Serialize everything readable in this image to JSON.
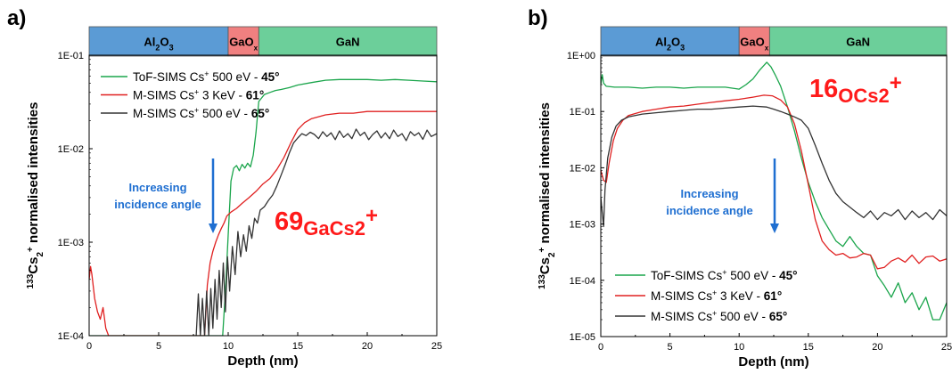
{
  "colors": {
    "tof": "#1aa54b",
    "msims3k": "#e02020",
    "msims500": "#333333",
    "al2o3": "#5b9bd5",
    "gaox": "#f08080",
    "gan": "#6ccf9a",
    "arrow": "#1f6fd1",
    "species": "#ff1a1a"
  },
  "chart_data": [
    {
      "type": "line",
      "panel_label": "a)",
      "xlabel": "Depth (nm)",
      "ylabel_text": "Cs",
      "ylabel_super_pre": "133",
      "ylabel_sub": "2",
      "ylabel_super": "+",
      "ylabel_rest": " normalised intensities",
      "y_scale": "log",
      "xlim": [
        0,
        25
      ],
      "ylim": [
        0.0001,
        0.1
      ],
      "x_ticks": [
        "0",
        "5",
        "10",
        "15",
        "20",
        "25"
      ],
      "y_ticks": [
        "1E-04",
        "1E-03",
        "1E-02",
        "1E-01"
      ],
      "layers": [
        {
          "label": "Al",
          "sub": "2",
          "label2": "O",
          "sub2": "3",
          "from": 0,
          "to": 10
        },
        {
          "label": "GaO",
          "sub": "x",
          "label2": "",
          "sub2": "",
          "from": 10,
          "to": 12.2
        },
        {
          "label": "GaN",
          "sub": "",
          "label2": "",
          "sub2": "",
          "from": 12.2,
          "to": 25
        }
      ],
      "species_label": "69GaCs2+",
      "annotation": [
        "Increasing",
        "incidence angle"
      ],
      "legend_position": "top-left",
      "series": [
        {
          "key": "tof",
          "name_parts": [
            "ToF-SIMS Cs",
            "+",
            " 500 eV - ",
            "45°"
          ],
          "x": [
            0,
            0.2,
            9.6,
            9.8,
            10.0,
            10.2,
            10.4,
            10.6,
            10.8,
            11.0,
            11.2,
            11.4,
            11.6,
            11.8,
            12.0,
            12.2,
            12.6,
            13.0,
            13.4,
            13.8,
            14.4,
            15.0,
            16.0,
            17.0,
            18.0,
            19.0,
            20.0,
            21.0,
            22.0,
            23.0,
            24.0,
            25.0
          ],
          "y": [
            0.0001,
            0.0001,
            0.0001,
            0.0003,
            0.0012,
            0.0045,
            0.0062,
            0.0066,
            0.0058,
            0.0068,
            0.0062,
            0.007,
            0.0064,
            0.0085,
            0.015,
            0.032,
            0.038,
            0.04,
            0.042,
            0.043,
            0.045,
            0.048,
            0.051,
            0.054,
            0.055,
            0.055,
            0.055,
            0.054,
            0.055,
            0.054,
            0.053,
            0.052
          ]
        },
        {
          "key": "msims3k",
          "name_parts": [
            "M-SIMS Cs",
            "+",
            " 3 KeV - ",
            "61°"
          ],
          "x": [
            0,
            0.1,
            0.2,
            0.4,
            0.6,
            0.8,
            1.0,
            1.2,
            1.4,
            8.3,
            8.5,
            8.7,
            8.9,
            9.1,
            9.3,
            9.5,
            9.7,
            9.9,
            10.2,
            10.6,
            11.0,
            11.5,
            12.0,
            12.5,
            13.0,
            13.5,
            14.0,
            14.5,
            15.0,
            15.5,
            16.0,
            17.0,
            18.0,
            19.0,
            20.0,
            21.0,
            22.0,
            23.0,
            24.0,
            25.0
          ],
          "y": [
            0.0004,
            0.00055,
            0.00045,
            0.00025,
            0.00018,
            0.00015,
            0.0002,
            0.00012,
            0.0001,
            0.0001,
            0.00035,
            0.0006,
            0.0008,
            0.001,
            0.0012,
            0.0014,
            0.0016,
            0.0019,
            0.0021,
            0.0023,
            0.0026,
            0.003,
            0.0035,
            0.0042,
            0.0048,
            0.006,
            0.008,
            0.0115,
            0.016,
            0.019,
            0.021,
            0.023,
            0.024,
            0.024,
            0.025,
            0.025,
            0.025,
            0.025,
            0.025,
            0.025
          ]
        },
        {
          "key": "msims500",
          "name_parts": [
            "M-SIMS Cs",
            "+",
            " 500 eV - ",
            "65°"
          ],
          "x": [
            7.7,
            7.85,
            8.0,
            8.15,
            8.3,
            8.45,
            8.6,
            8.75,
            8.9,
            9.05,
            9.2,
            9.35,
            9.5,
            9.65,
            9.8,
            9.95,
            10.1,
            10.3,
            10.5,
            10.7,
            10.9,
            11.1,
            11.3,
            11.5,
            11.7,
            11.9,
            12.1,
            12.3,
            12.6,
            12.9,
            13.2,
            13.5,
            13.8,
            14.1,
            14.4,
            14.7,
            15.0,
            15.3,
            15.6,
            15.9,
            16.2,
            16.5,
            16.8,
            17.1,
            17.4,
            17.7,
            18.0,
            18.3,
            18.6,
            18.9,
            19.2,
            19.5,
            19.8,
            20.1,
            20.4,
            20.7,
            21.0,
            21.3,
            21.6,
            21.9,
            22.2,
            22.5,
            22.8,
            23.1,
            23.4,
            23.7,
            24.0,
            24.3,
            24.6,
            25.0
          ],
          "y": [
            0.0001,
            0.00028,
            0.0001,
            0.00025,
            0.0001,
            0.0003,
            0.0001,
            0.00032,
            0.00012,
            0.0004,
            0.00015,
            0.0005,
            0.0002,
            0.0006,
            0.00018,
            0.0007,
            0.0003,
            0.0009,
            0.00045,
            0.0013,
            0.0007,
            0.0012,
            0.0008,
            0.0015,
            0.0011,
            0.0018,
            0.0016,
            0.0022,
            0.0024,
            0.0028,
            0.0032,
            0.004,
            0.0052,
            0.0068,
            0.009,
            0.0115,
            0.013,
            0.0145,
            0.0138,
            0.015,
            0.0142,
            0.0128,
            0.0152,
            0.0135,
            0.0148,
            0.0125,
            0.0155,
            0.0132,
            0.0145,
            0.0128,
            0.0162,
            0.0138,
            0.015,
            0.0125,
            0.0142,
            0.0155,
            0.013,
            0.0148,
            0.0128,
            0.0158,
            0.0135,
            0.0145,
            0.0122,
            0.0152,
            0.0138,
            0.0148,
            0.0126,
            0.0158,
            0.0135,
            0.0145
          ]
        }
      ]
    },
    {
      "type": "line",
      "panel_label": "b)",
      "xlabel": "Depth (nm)",
      "ylabel_text": "Cs",
      "ylabel_super_pre": "133",
      "ylabel_sub": "2",
      "ylabel_super": "+",
      "ylabel_rest": " normalised intensities",
      "y_scale": "log",
      "xlim": [
        0,
        25
      ],
      "ylim": [
        1e-05,
        1
      ],
      "x_ticks": [
        "0",
        "5",
        "10",
        "15",
        "20",
        "25"
      ],
      "y_ticks": [
        "1E-05",
        "1E-04",
        "1E-03",
        "1E-02",
        "1E-01",
        "1E+00"
      ],
      "layers": [
        {
          "label": "Al",
          "sub": "2",
          "label2": "O",
          "sub2": "3",
          "from": 0,
          "to": 10
        },
        {
          "label": "GaO",
          "sub": "x",
          "label2": "",
          "sub2": "",
          "from": 10,
          "to": 12.2
        },
        {
          "label": "GaN",
          "sub": "",
          "label2": "",
          "sub2": "",
          "from": 12.2,
          "to": 25
        }
      ],
      "species_label": "16OCs2+",
      "annotation": [
        "Increasing",
        "incidence angle"
      ],
      "legend_position": "bottom-left",
      "series": [
        {
          "key": "tof",
          "name_parts": [
            "ToF-SIMS Cs",
            "+",
            " 500 eV - ",
            "45°"
          ],
          "x": [
            0,
            0.1,
            0.2,
            0.4,
            1,
            2,
            3,
            4,
            5,
            6,
            7,
            8,
            9,
            9.5,
            10,
            10.5,
            11,
            11.5,
            12,
            12.3,
            12.6,
            13,
            13.5,
            14,
            14.5,
            15,
            15.5,
            16,
            16.5,
            17,
            17.5,
            18,
            18.5,
            19,
            19.5,
            20,
            20.5,
            21,
            21.5,
            22,
            22.5,
            23,
            23.5,
            24,
            24.5,
            25
          ],
          "y": [
            0.3,
            0.45,
            0.32,
            0.28,
            0.27,
            0.27,
            0.26,
            0.27,
            0.27,
            0.26,
            0.27,
            0.27,
            0.27,
            0.26,
            0.25,
            0.3,
            0.38,
            0.55,
            0.75,
            0.62,
            0.45,
            0.28,
            0.12,
            0.045,
            0.015,
            0.0055,
            0.0025,
            0.0013,
            0.0008,
            0.0005,
            0.0004,
            0.0006,
            0.0004,
            0.0003,
            0.00028,
            0.00012,
            8e-05,
            5e-05,
            9e-05,
            4e-05,
            6e-05,
            3e-05,
            5e-05,
            2e-05,
            2e-05,
            4e-05
          ]
        },
        {
          "key": "msims3k",
          "name_parts": [
            "M-SIMS Cs",
            "+",
            " 3 KeV - ",
            "61°"
          ],
          "x": [
            0,
            0.2,
            0.4,
            0.6,
            0.9,
            1.2,
            1.6,
            2,
            3,
            4,
            5,
            6,
            7,
            8,
            9,
            10,
            11,
            11.8,
            12.4,
            13,
            13.5,
            14,
            14.5,
            15,
            15.5,
            16,
            16.5,
            17,
            17.5,
            18,
            18.5,
            19,
            19.5,
            20,
            20.5,
            21,
            21.5,
            22,
            22.5,
            23,
            23.5,
            24,
            24.5,
            25
          ],
          "y": [
            0.009,
            0.006,
            0.0055,
            0.012,
            0.03,
            0.05,
            0.07,
            0.085,
            0.1,
            0.11,
            0.12,
            0.125,
            0.135,
            0.145,
            0.155,
            0.165,
            0.18,
            0.195,
            0.19,
            0.16,
            0.12,
            0.06,
            0.02,
            0.005,
            0.0012,
            0.0005,
            0.00035,
            0.00028,
            0.0003,
            0.00025,
            0.00026,
            0.0003,
            0.00028,
            0.00016,
            0.00017,
            0.00022,
            0.00025,
            0.00021,
            0.00028,
            0.0002,
            0.00026,
            0.00027,
            0.00022,
            0.00024
          ]
        },
        {
          "key": "msims500",
          "name_parts": [
            "M-SIMS Cs",
            "+",
            " 500 eV - ",
            "65°"
          ],
          "x": [
            0,
            0.2,
            0.3,
            0.5,
            0.8,
            1.1,
            1.5,
            2,
            3,
            4,
            5,
            6,
            7,
            8,
            9,
            10,
            11,
            12,
            12.5,
            13,
            13.5,
            14,
            14.5,
            15,
            15.5,
            16,
            16.5,
            17,
            17.5,
            18,
            18.5,
            19,
            19.5,
            20,
            20.5,
            21,
            21.5,
            22,
            22.5,
            23,
            23.5,
            24,
            24.5,
            25
          ],
          "y": [
            0.003,
            0.0009,
            0.004,
            0.015,
            0.035,
            0.055,
            0.07,
            0.08,
            0.09,
            0.095,
            0.1,
            0.105,
            0.11,
            0.11,
            0.115,
            0.12,
            0.125,
            0.12,
            0.11,
            0.1,
            0.09,
            0.08,
            0.07,
            0.05,
            0.025,
            0.012,
            0.006,
            0.0035,
            0.0025,
            0.002,
            0.0016,
            0.0013,
            0.0017,
            0.0012,
            0.0016,
            0.0014,
            0.0018,
            0.0012,
            0.0017,
            0.0013,
            0.0016,
            0.0012,
            0.0018,
            0.0014
          ]
        }
      ]
    }
  ]
}
